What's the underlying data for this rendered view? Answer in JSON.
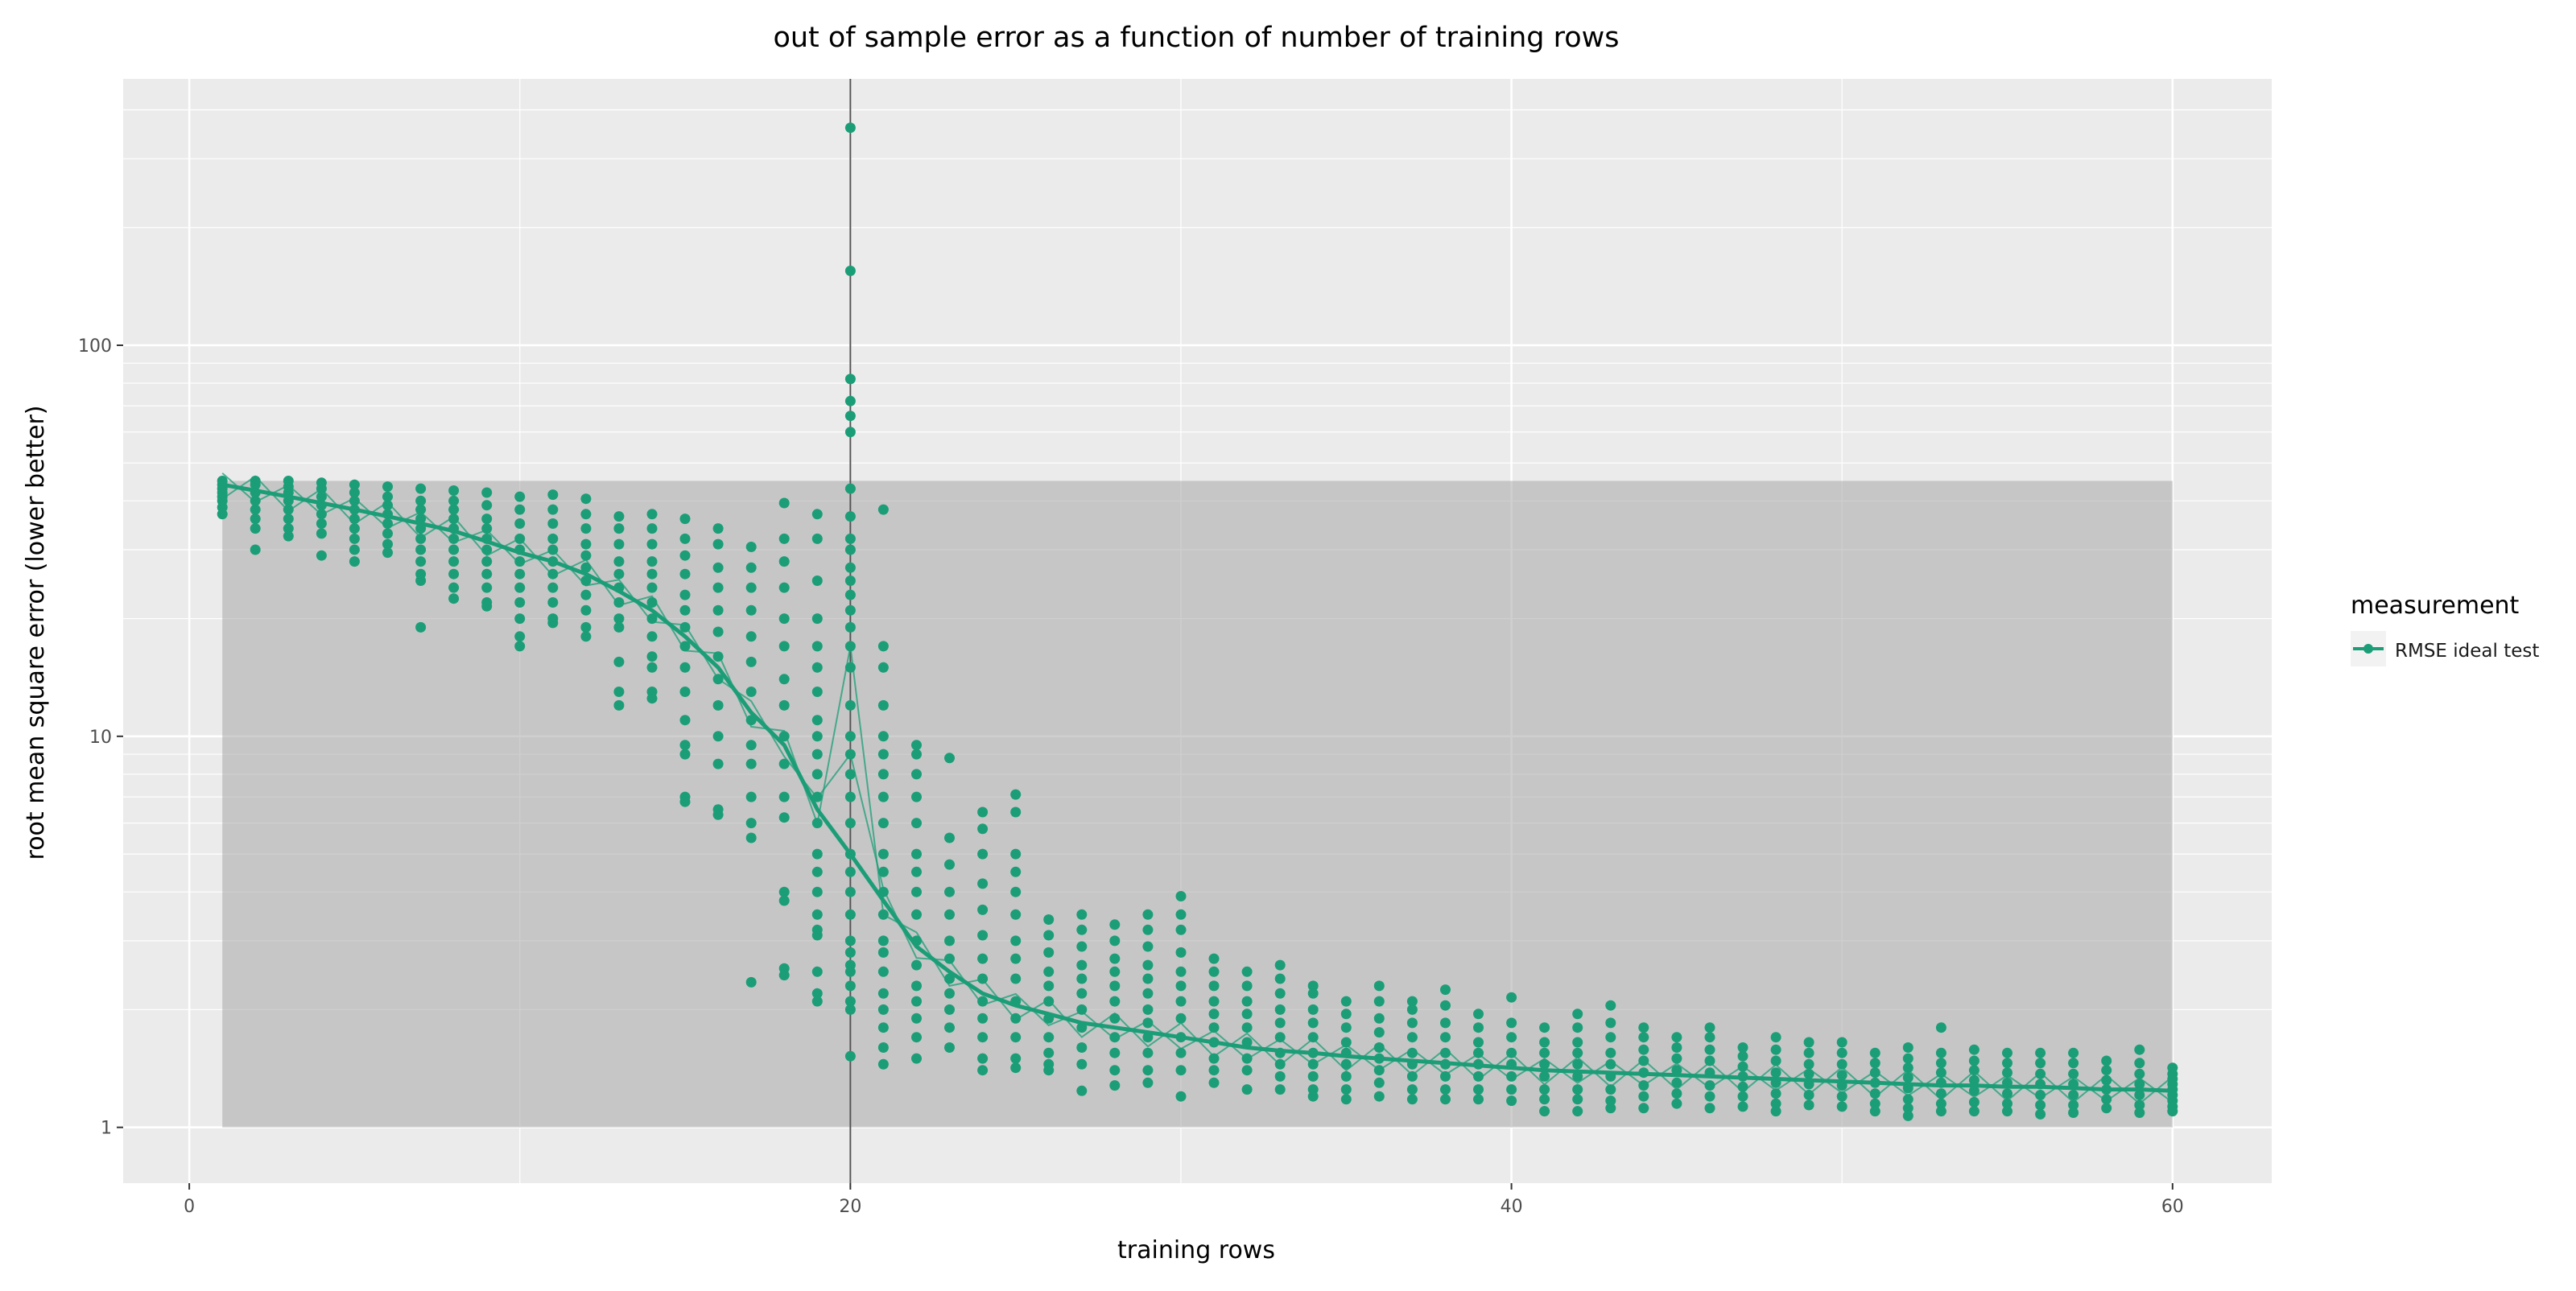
{
  "chart_data": {
    "type": "scatter",
    "title": "out of sample error as a function of number of training rows",
    "xlabel": "training rows",
    "ylabel": "root mean square error (lower better)",
    "xlim": [
      -2,
      63
    ],
    "ylim": [
      0.72,
      480
    ],
    "y_scale": "log",
    "x_ticks": [
      0,
      20,
      40,
      60
    ],
    "x_tick_labels": [
      "0",
      "20",
      "40",
      "60"
    ],
    "y_ticks": [
      1,
      10,
      100
    ],
    "y_tick_labels": [
      "1",
      "10",
      "100"
    ],
    "grid": true,
    "vline_x": 20,
    "band": {
      "x": [
        1,
        60
      ],
      "y": [
        1,
        45
      ]
    },
    "legend": {
      "title": "measurement",
      "position": "right",
      "entries": [
        {
          "label": "RMSE ideal test",
          "color": "#1b9e77"
        }
      ]
    },
    "colors": {
      "series": "#1b9e77",
      "panel": "#ebebeb",
      "band": "#c4c4c4",
      "grid": "#ffffff",
      "vline": "#555555"
    },
    "series": [
      {
        "name": "RMSE ideal test",
        "mean_line": {
          "x": [
            1,
            2,
            3,
            4,
            5,
            6,
            7,
            8,
            9,
            10,
            11,
            12,
            13,
            14,
            15,
            16,
            17,
            18,
            19,
            20,
            21,
            22,
            23,
            24,
            25,
            26,
            27,
            28,
            29,
            30,
            31,
            32,
            33,
            34,
            35,
            36,
            37,
            38,
            39,
            40,
            41,
            42,
            43,
            44,
            45,
            46,
            47,
            48,
            49,
            50,
            51,
            52,
            53,
            54,
            55,
            56,
            57,
            58,
            59,
            60
          ],
          "y": [
            44,
            42.5,
            41,
            39.5,
            38,
            36.5,
            35,
            33.5,
            31.5,
            29.5,
            28,
            26,
            23.5,
            21,
            18,
            15,
            11.5,
            9.5,
            6.5,
            5,
            3.8,
            2.9,
            2.5,
            2.2,
            2.05,
            1.95,
            1.85,
            1.8,
            1.75,
            1.7,
            1.65,
            1.6,
            1.57,
            1.55,
            1.52,
            1.5,
            1.48,
            1.46,
            1.44,
            1.42,
            1.4,
            1.39,
            1.38,
            1.37,
            1.36,
            1.35,
            1.34,
            1.33,
            1.32,
            1.31,
            1.3,
            1.29,
            1.28,
            1.28,
            1.27,
            1.27,
            1.26,
            1.25,
            1.25,
            1.24
          ]
        },
        "points": [
          {
            "x": 1,
            "y": [
              45,
              44,
              43,
              42,
              41,
              40,
              38.5,
              37
            ]
          },
          {
            "x": 2,
            "y": [
              45,
              44,
              42,
              40,
              38,
              36,
              34,
              30
            ]
          },
          {
            "x": 3,
            "y": [
              45,
              43.5,
              42,
              40,
              38,
              36,
              34,
              32.5
            ]
          },
          {
            "x": 4,
            "y": [
              44.5,
              43,
              41,
              39,
              37,
              35,
              33,
              29
            ]
          },
          {
            "x": 5,
            "y": [
              44,
              42,
              40,
              38,
              36,
              34,
              32,
              30,
              28
            ]
          },
          {
            "x": 6,
            "y": [
              43.5,
              41,
              39,
              37,
              35,
              33,
              31,
              29.5
            ]
          },
          {
            "x": 7,
            "y": [
              43,
              40,
              38,
              36,
              34,
              32,
              30,
              28,
              26,
              25,
              19
            ]
          },
          {
            "x": 8,
            "y": [
              42.5,
              40,
              38,
              36,
              34,
              32,
              30,
              28,
              26,
              24,
              22.5
            ]
          },
          {
            "x": 9,
            "y": [
              42,
              39,
              36,
              34,
              32,
              30,
              28,
              26,
              24,
              22,
              21.5
            ]
          },
          {
            "x": 10,
            "y": [
              41,
              38,
              35,
              32,
              30,
              28,
              26,
              24,
              22,
              20,
              18,
              17
            ]
          },
          {
            "x": 11,
            "y": [
              41.5,
              38,
              35,
              32,
              30,
              28,
              26,
              24,
              22,
              20,
              19.5
            ]
          },
          {
            "x": 12,
            "y": [
              40.5,
              37,
              34,
              31,
              29,
              27,
              25,
              23,
              21,
              19,
              18
            ]
          },
          {
            "x": 13,
            "y": [
              36.5,
              34,
              31,
              28,
              26,
              24,
              22,
              20,
              19,
              15.5,
              13,
              12
            ]
          },
          {
            "x": 14,
            "y": [
              37,
              34,
              31,
              28,
              26,
              24,
              22,
              20,
              18,
              16,
              15,
              13,
              12.5
            ]
          },
          {
            "x": 15,
            "y": [
              36,
              32,
              29,
              26,
              23,
              21,
              19,
              17,
              15,
              13,
              11,
              9.5,
              9,
              7,
              6.8
            ]
          },
          {
            "x": 16,
            "y": [
              34,
              31,
              27,
              24,
              21,
              18.5,
              16,
              14,
              12,
              10,
              8.5,
              6.5,
              6.3
            ]
          },
          {
            "x": 17,
            "y": [
              30.5,
              27,
              24,
              21,
              18,
              15.5,
              13,
              11,
              9.5,
              8.5,
              7,
              6,
              5.5,
              2.35
            ]
          },
          {
            "x": 18,
            "y": [
              39.5,
              32,
              28,
              24,
              20,
              17,
              14,
              12,
              10,
              8.5,
              7,
              6.2,
              4,
              3.8,
              2.55,
              2.45
            ]
          },
          {
            "x": 19,
            "y": [
              37,
              32,
              25,
              20,
              17,
              15,
              13,
              11,
              10,
              9,
              8,
              7,
              6,
              5,
              4.5,
              4,
              3.5,
              3.2,
              3.1,
              2.5,
              2.2,
              2.1
            ]
          },
          {
            "x": 20,
            "y": [
              360,
              155,
              82,
              72,
              66,
              60,
              43,
              36.5,
              32,
              30,
              27,
              25,
              23,
              21,
              19,
              17,
              15,
              12,
              10,
              9,
              8,
              7,
              6,
              5,
              4.5,
              4,
              3.5,
              3,
              2.8,
              2.6,
              2.5,
              2.3,
              2.1,
              2.0,
              1.52
            ]
          },
          {
            "x": 21,
            "y": [
              38,
              17,
              15,
              12,
              10,
              9,
              8,
              7,
              6,
              5,
              4.5,
              4,
              3.5,
              3,
              2.8,
              2.5,
              2.2,
              2,
              1.8,
              1.6,
              1.45
            ]
          },
          {
            "x": 22,
            "y": [
              9.5,
              9,
              8,
              7,
              6,
              5,
              4.5,
              4,
              3.5,
              3,
              2.6,
              2.3,
              2.1,
              1.9,
              1.7,
              1.5
            ]
          },
          {
            "x": 23,
            "y": [
              8.8,
              5.5,
              4.7,
              4,
              3.5,
              3,
              2.7,
              2.4,
              2.2,
              2,
              1.8,
              1.6
            ]
          },
          {
            "x": 24,
            "y": [
              6.4,
              5.8,
              5,
              4.2,
              3.6,
              3.1,
              2.7,
              2.4,
              2.1,
              1.9,
              1.7,
              1.5,
              1.4
            ]
          },
          {
            "x": 25,
            "y": [
              7.1,
              6.4,
              5,
              4.5,
              4,
              3.5,
              3,
              2.7,
              2.4,
              2.1,
              1.9,
              1.7,
              1.5,
              1.42
            ]
          },
          {
            "x": 26,
            "y": [
              3.4,
              3.1,
              2.8,
              2.5,
              2.3,
              2.1,
              1.9,
              1.7,
              1.55,
              1.45,
              1.4
            ]
          },
          {
            "x": 27,
            "y": [
              3.5,
              3.2,
              2.9,
              2.6,
              2.4,
              2.2,
              2,
              1.8,
              1.6,
              1.45,
              1.24
            ]
          },
          {
            "x": 28,
            "y": [
              3.3,
              3,
              2.7,
              2.5,
              2.3,
              2.1,
              1.9,
              1.7,
              1.55,
              1.4,
              1.28
            ]
          },
          {
            "x": 29,
            "y": [
              3.5,
              3.2,
              2.9,
              2.6,
              2.4,
              2.2,
              2,
              1.85,
              1.7,
              1.55,
              1.4,
              1.3
            ]
          },
          {
            "x": 30,
            "y": [
              3.9,
              3.5,
              3.2,
              2.8,
              2.5,
              2.3,
              2.1,
              1.9,
              1.7,
              1.55,
              1.4,
              1.2
            ]
          },
          {
            "x": 31,
            "y": [
              2.7,
              2.5,
              2.3,
              2.1,
              1.95,
              1.8,
              1.65,
              1.5,
              1.4,
              1.3
            ]
          },
          {
            "x": 32,
            "y": [
              2.5,
              2.3,
              2.1,
              1.95,
              1.8,
              1.65,
              1.5,
              1.4,
              1.25
            ]
          },
          {
            "x": 33,
            "y": [
              2.6,
              2.4,
              2.2,
              2,
              1.85,
              1.7,
              1.55,
              1.45,
              1.35,
              1.25
            ]
          },
          {
            "x": 34,
            "y": [
              2.3,
              2.2,
              2,
              1.85,
              1.7,
              1.55,
              1.45,
              1.35,
              1.25,
              1.2
            ]
          },
          {
            "x": 35,
            "y": [
              2.1,
              1.95,
              1.8,
              1.65,
              1.55,
              1.45,
              1.35,
              1.25,
              1.18
            ]
          },
          {
            "x": 36,
            "y": [
              2.3,
              2.1,
              1.9,
              1.75,
              1.6,
              1.5,
              1.4,
              1.3,
              1.2
            ]
          },
          {
            "x": 37,
            "y": [
              2.1,
              2,
              1.85,
              1.7,
              1.55,
              1.45,
              1.35,
              1.25,
              1.18
            ]
          },
          {
            "x": 38,
            "y": [
              2.25,
              2.05,
              1.85,
              1.7,
              1.55,
              1.45,
              1.35,
              1.25,
              1.18
            ]
          },
          {
            "x": 39,
            "y": [
              1.95,
              1.8,
              1.65,
              1.55,
              1.45,
              1.35,
              1.25,
              1.18
            ]
          },
          {
            "x": 40,
            "y": [
              2.15,
              1.85,
              1.7,
              1.55,
              1.45,
              1.35,
              1.25,
              1.17
            ]
          },
          {
            "x": 41,
            "y": [
              1.8,
              1.65,
              1.55,
              1.45,
              1.35,
              1.25,
              1.18,
              1.1
            ]
          },
          {
            "x": 42,
            "y": [
              1.95,
              1.8,
              1.65,
              1.55,
              1.45,
              1.35,
              1.25,
              1.18,
              1.1
            ]
          },
          {
            "x": 43,
            "y": [
              2.05,
              1.85,
              1.7,
              1.55,
              1.45,
              1.35,
              1.25,
              1.17,
              1.12
            ]
          },
          {
            "x": 44,
            "y": [
              1.8,
              1.7,
              1.58,
              1.48,
              1.38,
              1.28,
              1.2,
              1.12
            ]
          },
          {
            "x": 45,
            "y": [
              1.7,
              1.6,
              1.5,
              1.4,
              1.3,
              1.22,
              1.15
            ]
          },
          {
            "x": 46,
            "y": [
              1.8,
              1.7,
              1.58,
              1.48,
              1.38,
              1.28,
              1.2,
              1.12
            ]
          },
          {
            "x": 47,
            "y": [
              1.6,
              1.52,
              1.43,
              1.35,
              1.27,
              1.2,
              1.13
            ]
          },
          {
            "x": 48,
            "y": [
              1.7,
              1.58,
              1.48,
              1.38,
              1.3,
              1.22,
              1.15,
              1.1
            ]
          },
          {
            "x": 49,
            "y": [
              1.65,
              1.55,
              1.45,
              1.37,
              1.29,
              1.21,
              1.14
            ]
          },
          {
            "x": 50,
            "y": [
              1.65,
              1.55,
              1.45,
              1.36,
              1.28,
              1.2,
              1.13
            ]
          },
          {
            "x": 51,
            "y": [
              1.55,
              1.46,
              1.38,
              1.3,
              1.22,
              1.15,
              1.1
            ]
          },
          {
            "x": 52,
            "y": [
              1.6,
              1.5,
              1.42,
              1.34,
              1.26,
              1.18,
              1.12,
              1.07
            ]
          },
          {
            "x": 53,
            "y": [
              1.8,
              1.55,
              1.46,
              1.38,
              1.3,
              1.22,
              1.15,
              1.1
            ]
          },
          {
            "x": 54,
            "y": [
              1.58,
              1.48,
              1.4,
              1.32,
              1.24,
              1.16,
              1.1
            ]
          },
          {
            "x": 55,
            "y": [
              1.55,
              1.46,
              1.38,
              1.3,
              1.22,
              1.15,
              1.1
            ]
          },
          {
            "x": 56,
            "y": [
              1.55,
              1.46,
              1.37,
              1.29,
              1.21,
              1.14,
              1.08
            ]
          },
          {
            "x": 57,
            "y": [
              1.55,
              1.46,
              1.37,
              1.29,
              1.21,
              1.14,
              1.09
            ]
          },
          {
            "x": 58,
            "y": [
              1.48,
              1.4,
              1.32,
              1.25,
              1.18,
              1.12
            ]
          },
          {
            "x": 59,
            "y": [
              1.58,
              1.46,
              1.37,
              1.29,
              1.21,
              1.14,
              1.09
            ]
          },
          {
            "x": 60,
            "y": [
              1.42,
              1.37,
              1.33,
              1.29,
              1.25,
              1.21,
              1.17,
              1.13,
              1.1
            ]
          }
        ]
      }
    ]
  }
}
